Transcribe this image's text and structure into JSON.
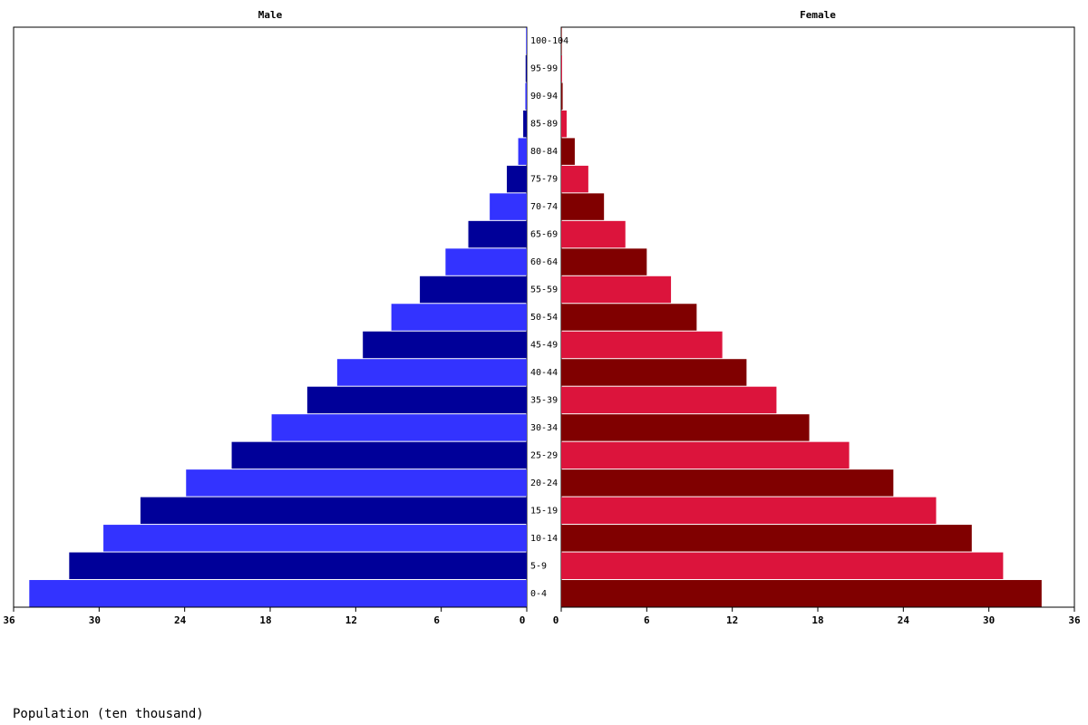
{
  "chart_data": {
    "type": "pyramid",
    "categories": [
      "0-4",
      "5-9",
      "10-14",
      "15-19",
      "20-24",
      "25-29",
      "30-34",
      "35-39",
      "40-44",
      "45-49",
      "50-54",
      "55-59",
      "60-64",
      "65-69",
      "70-74",
      "75-79",
      "80-84",
      "85-89",
      "90-94",
      "95-99",
      "100-104"
    ],
    "series": [
      {
        "name": "Male",
        "colors": [
          "#3333ff",
          "#000099"
        ],
        "values": [
          34.9,
          32.1,
          29.7,
          27.1,
          23.9,
          20.7,
          17.9,
          15.4,
          13.3,
          11.5,
          9.5,
          7.5,
          5.7,
          4.1,
          2.6,
          1.4,
          0.6,
          0.25,
          0.1,
          0.08,
          0.05
        ]
      },
      {
        "name": "Female",
        "colors": [
          "#800000",
          "#dc143c"
        ],
        "values": [
          33.7,
          31.0,
          28.8,
          26.3,
          23.3,
          20.2,
          17.4,
          15.1,
          13.0,
          11.3,
          9.5,
          7.7,
          6.0,
          4.5,
          3.0,
          1.9,
          0.95,
          0.38,
          0.1,
          0.06,
          0.04
        ]
      }
    ],
    "xlim": [
      0,
      36
    ],
    "xticks": [
      0,
      6,
      12,
      18,
      24,
      30,
      36
    ],
    "xlabel": "Population (ten thousand)"
  }
}
